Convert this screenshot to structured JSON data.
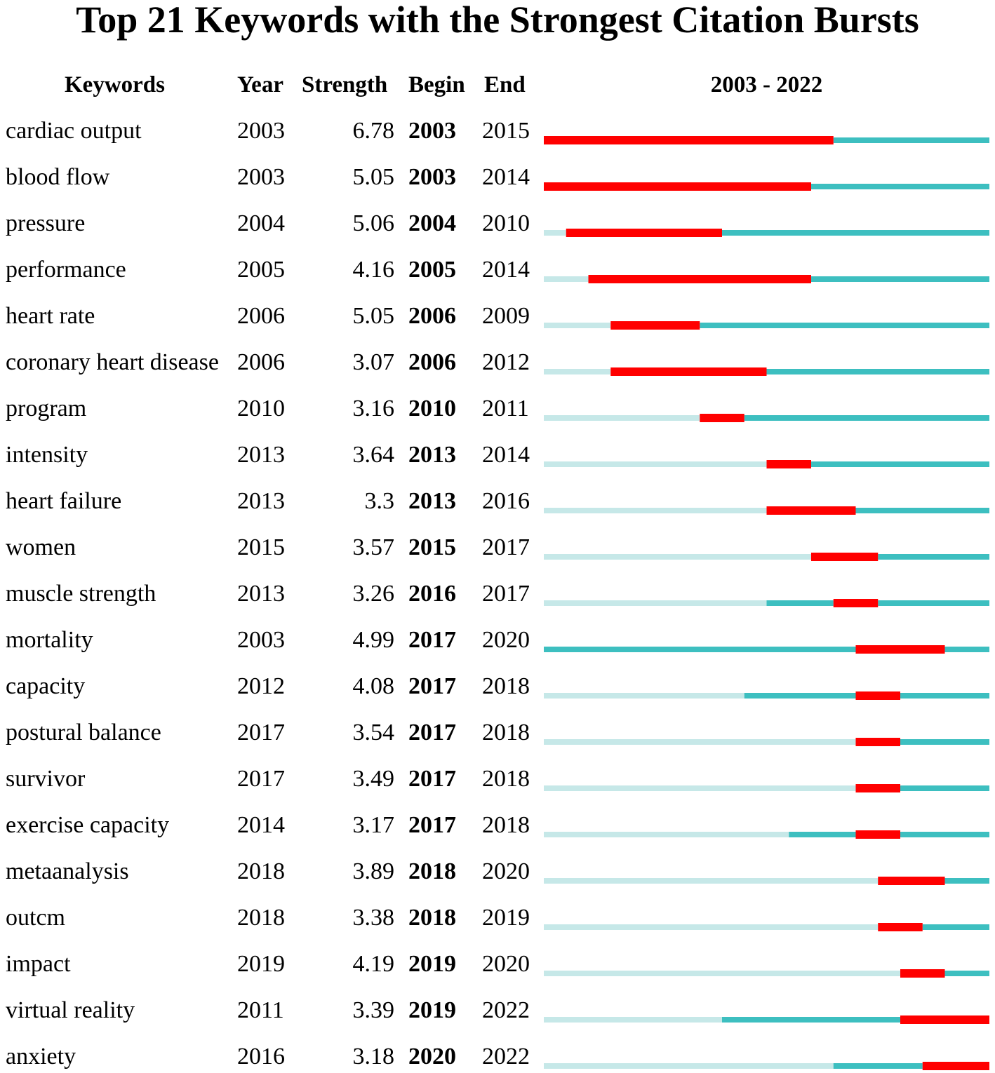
{
  "chart_data": {
    "type": "table",
    "title": "Top 21 Keywords with the Strongest Citation Bursts",
    "columns": [
      "Keywords",
      "Year",
      "Strength",
      "Begin",
      "End",
      "2003 - 2022"
    ],
    "range": [
      2003,
      2022
    ],
    "colors": {
      "burst": "#ff0000",
      "active": "#3dbfc0",
      "inactive": "#c6e8e8"
    },
    "rows": [
      {
        "keyword": "cardiac output",
        "year": "2003",
        "strength": "6.78",
        "begin": "2003",
        "end": "2015"
      },
      {
        "keyword": "blood flow",
        "year": "2003",
        "strength": "5.05",
        "begin": "2003",
        "end": "2014"
      },
      {
        "keyword": "pressure",
        "year": "2004",
        "strength": "5.06",
        "begin": "2004",
        "end": "2010"
      },
      {
        "keyword": "performance",
        "year": "2005",
        "strength": "4.16",
        "begin": "2005",
        "end": "2014"
      },
      {
        "keyword": "heart rate",
        "year": "2006",
        "strength": "5.05",
        "begin": "2006",
        "end": "2009"
      },
      {
        "keyword": "coronary heart disease",
        "year": "2006",
        "strength": "3.07",
        "begin": "2006",
        "end": "2012"
      },
      {
        "keyword": "program",
        "year": "2010",
        "strength": "3.16",
        "begin": "2010",
        "end": "2011"
      },
      {
        "keyword": "intensity",
        "year": "2013",
        "strength": "3.64",
        "begin": "2013",
        "end": "2014"
      },
      {
        "keyword": "heart failure",
        "year": "2013",
        "strength": "3.3",
        "begin": "2013",
        "end": "2016"
      },
      {
        "keyword": "women",
        "year": "2015",
        "strength": "3.57",
        "begin": "2015",
        "end": "2017"
      },
      {
        "keyword": "muscle strength",
        "year": "2013",
        "strength": "3.26",
        "begin": "2016",
        "end": "2017"
      },
      {
        "keyword": "mortality",
        "year": "2003",
        "strength": "4.99",
        "begin": "2017",
        "end": "2020"
      },
      {
        "keyword": "capacity",
        "year": "2012",
        "strength": "4.08",
        "begin": "2017",
        "end": "2018"
      },
      {
        "keyword": "postural balance",
        "year": "2017",
        "strength": "3.54",
        "begin": "2017",
        "end": "2018"
      },
      {
        "keyword": "survivor",
        "year": "2017",
        "strength": "3.49",
        "begin": "2017",
        "end": "2018"
      },
      {
        "keyword": "exercise capacity",
        "year": "2014",
        "strength": "3.17",
        "begin": "2017",
        "end": "2018"
      },
      {
        "keyword": "metaanalysis",
        "year": "2018",
        "strength": "3.89",
        "begin": "2018",
        "end": "2020"
      },
      {
        "keyword": "outcm",
        "year": "2018",
        "strength": "3.38",
        "begin": "2018",
        "end": "2019"
      },
      {
        "keyword": "impact",
        "year": "2019",
        "strength": "4.19",
        "begin": "2019",
        "end": "2020"
      },
      {
        "keyword": "virtual reality",
        "year": "2011",
        "strength": "3.39",
        "begin": "2019",
        "end": "2022"
      },
      {
        "keyword": "anxiety",
        "year": "2016",
        "strength": "3.18",
        "begin": "2020",
        "end": "2022"
      }
    ]
  }
}
